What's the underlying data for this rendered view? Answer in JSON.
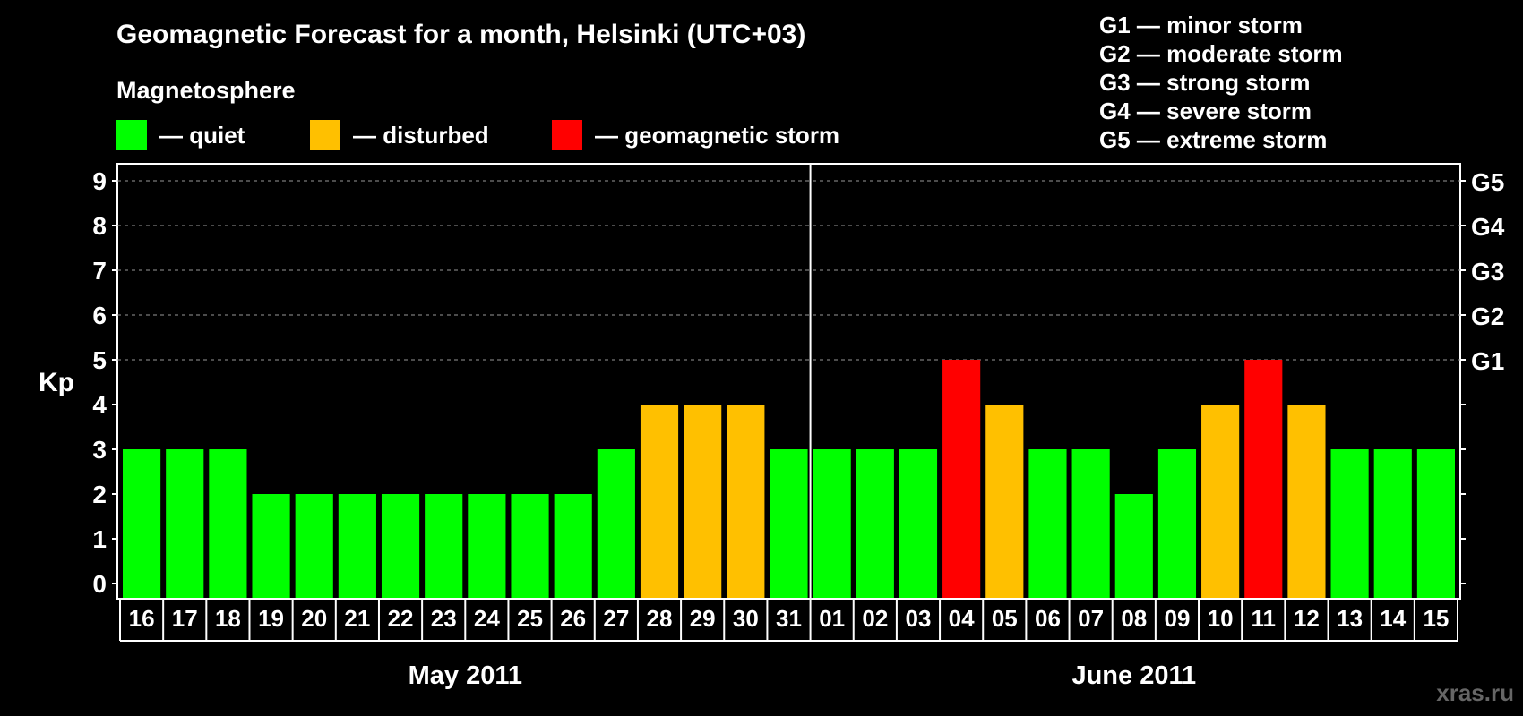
{
  "header": {
    "title": "Geomagnetic Forecast for a month, Helsinki (UTC+03)",
    "magnetosphere_label": "Magnetosphere"
  },
  "legend": {
    "quiet": "— quiet",
    "disturbed": "— disturbed",
    "storm": "— geomagnetic storm"
  },
  "g_scale": [
    "G1 — minor storm",
    "G2 — moderate storm",
    "G3 — strong storm",
    "G4 — severe storm",
    "G5 — extreme storm"
  ],
  "watermark": "xras.ru",
  "colors": {
    "quiet": "#00ff00",
    "disturbed": "#ffc000",
    "storm": "#ff0000",
    "background": "#000000",
    "foreground": "#ffffff"
  },
  "chart_data": {
    "type": "bar",
    "title": "Geomagnetic Forecast for a month, Helsinki (UTC+03)",
    "ylabel": "Kp",
    "ylim": [
      0,
      9
    ],
    "yticks": [
      "0",
      "1",
      "2",
      "3",
      "4",
      "5",
      "6",
      "7",
      "8",
      "9"
    ],
    "right_ticks": [
      {
        "value": 5,
        "label": "G1"
      },
      {
        "value": 6,
        "label": "G2"
      },
      {
        "value": 7,
        "label": "G3"
      },
      {
        "value": 8,
        "label": "G4"
      },
      {
        "value": 9,
        "label": "G5"
      }
    ],
    "categories": [
      "16",
      "17",
      "18",
      "19",
      "20",
      "21",
      "22",
      "23",
      "24",
      "25",
      "26",
      "27",
      "28",
      "29",
      "30",
      "31",
      "01",
      "02",
      "03",
      "04",
      "05",
      "06",
      "07",
      "08",
      "09",
      "10",
      "11",
      "12",
      "13",
      "14",
      "15"
    ],
    "values": [
      3,
      3,
      3,
      2,
      2,
      2,
      2,
      2,
      2,
      2,
      2,
      3,
      4,
      4,
      4,
      3,
      3,
      3,
      3,
      5,
      4,
      3,
      3,
      2,
      3,
      4,
      5,
      4,
      3,
      3,
      3
    ],
    "status": [
      "quiet",
      "quiet",
      "quiet",
      "quiet",
      "quiet",
      "quiet",
      "quiet",
      "quiet",
      "quiet",
      "quiet",
      "quiet",
      "quiet",
      "disturbed",
      "disturbed",
      "disturbed",
      "quiet",
      "quiet",
      "quiet",
      "quiet",
      "storm",
      "disturbed",
      "quiet",
      "quiet",
      "quiet",
      "quiet",
      "disturbed",
      "storm",
      "disturbed",
      "quiet",
      "quiet",
      "quiet"
    ],
    "months": [
      {
        "label": "May 2011",
        "start_index": 0,
        "count": 16
      },
      {
        "label": "June 2011",
        "start_index": 16,
        "count": 15
      }
    ],
    "grid_dashed_from": 5
  }
}
